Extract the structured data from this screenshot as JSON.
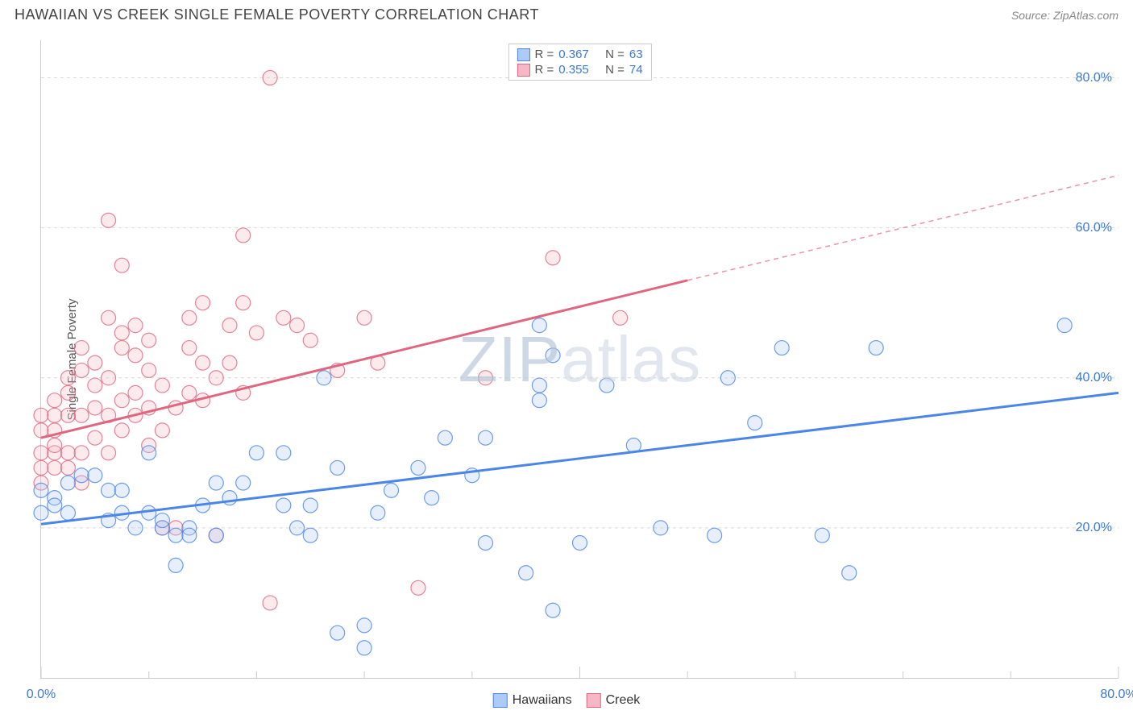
{
  "header": {
    "title": "HAWAIIAN VS CREEK SINGLE FEMALE POVERTY CORRELATION CHART",
    "source": "Source: ZipAtlas.com"
  },
  "watermark": {
    "zip": "ZIP",
    "atlas": "atlas"
  },
  "chart": {
    "type": "scatter-with-regression",
    "ylabel": "Single Female Poverty",
    "xlim": [
      0,
      80
    ],
    "ylim": [
      0,
      85
    ],
    "grid_color": "#d9d9d9",
    "grid_dash": "4 4",
    "axis_color": "#cccccc",
    "text_color": "#555555",
    "value_text_color": "#3b78d8",
    "y_ticks": [
      {
        "v": 20,
        "label": "20.0%"
      },
      {
        "v": 40,
        "label": "40.0%"
      },
      {
        "v": 60,
        "label": "60.0%"
      },
      {
        "v": 80,
        "label": "80.0%"
      }
    ],
    "x_ticks_major": [
      0,
      40,
      80
    ],
    "x_ticks_minor": [
      8,
      16,
      24,
      32,
      48,
      56,
      64,
      72
    ],
    "x_tick_left": {
      "v": 0,
      "label": "0.0%"
    },
    "x_tick_right": {
      "v": 80,
      "label": "80.0%"
    },
    "marker_radius": 9,
    "marker_stroke_width": 1.2,
    "marker_fill_opacity": 0.3,
    "regression_line_width": 3,
    "series": [
      {
        "name": "Hawaiians",
        "color": "#4a86e8",
        "fill": "#aecbf5",
        "stats": {
          "R_label": "R =",
          "R": "0.367",
          "N_label": "N =",
          "N": "63"
        },
        "regression": {
          "x1": 0,
          "y1": 20.5,
          "x2": 80,
          "y2": 38,
          "dashed_from": null
        },
        "points": [
          [
            0,
            22
          ],
          [
            0,
            25
          ],
          [
            1,
            24
          ],
          [
            1,
            23
          ],
          [
            2,
            26
          ],
          [
            2,
            22
          ],
          [
            3,
            27
          ],
          [
            4,
            27
          ],
          [
            5,
            25
          ],
          [
            5,
            21
          ],
          [
            6,
            22
          ],
          [
            6,
            25
          ],
          [
            7,
            20
          ],
          [
            8,
            30
          ],
          [
            8,
            22
          ],
          [
            9,
            20
          ],
          [
            9,
            21
          ],
          [
            10,
            19
          ],
          [
            10,
            15
          ],
          [
            11,
            20
          ],
          [
            11,
            19
          ],
          [
            12,
            23
          ],
          [
            13,
            26
          ],
          [
            13,
            19
          ],
          [
            14,
            24
          ],
          [
            15,
            26
          ],
          [
            16,
            30
          ],
          [
            18,
            30
          ],
          [
            18,
            23
          ],
          [
            19,
            20
          ],
          [
            20,
            23
          ],
          [
            20,
            19
          ],
          [
            21,
            40
          ],
          [
            22,
            28
          ],
          [
            22,
            6
          ],
          [
            24,
            7
          ],
          [
            24,
            4
          ],
          [
            25,
            22
          ],
          [
            26,
            25
          ],
          [
            28,
            28
          ],
          [
            29,
            24
          ],
          [
            30,
            32
          ],
          [
            32,
            27
          ],
          [
            33,
            32
          ],
          [
            33,
            18
          ],
          [
            36,
            14
          ],
          [
            37,
            47
          ],
          [
            37,
            37
          ],
          [
            37,
            39
          ],
          [
            38,
            43
          ],
          [
            38,
            9
          ],
          [
            40,
            18
          ],
          [
            42,
            39
          ],
          [
            44,
            31
          ],
          [
            46,
            20
          ],
          [
            50,
            19
          ],
          [
            51,
            40
          ],
          [
            53,
            34
          ],
          [
            55,
            44
          ],
          [
            58,
            19
          ],
          [
            60,
            14
          ],
          [
            62,
            44
          ],
          [
            76,
            47
          ]
        ]
      },
      {
        "name": "Creek",
        "color": "#e06680",
        "fill": "#f6b8c5",
        "stats": {
          "R_label": "R =",
          "R": "0.355",
          "N_label": "N =",
          "N": "74"
        },
        "regression": {
          "x1": 0,
          "y1": 32,
          "x2": 80,
          "y2": 67,
          "dashed_from": 48
        },
        "points": [
          [
            0,
            28
          ],
          [
            0,
            30
          ],
          [
            0,
            26
          ],
          [
            0,
            33
          ],
          [
            0,
            35
          ],
          [
            1,
            28
          ],
          [
            1,
            30
          ],
          [
            1,
            31
          ],
          [
            1,
            33
          ],
          [
            1,
            35
          ],
          [
            1,
            37
          ],
          [
            2,
            28
          ],
          [
            2,
            30
          ],
          [
            2,
            35
          ],
          [
            2,
            38
          ],
          [
            2,
            40
          ],
          [
            3,
            26
          ],
          [
            3,
            30
          ],
          [
            3,
            35
          ],
          [
            3,
            41
          ],
          [
            3,
            44
          ],
          [
            4,
            32
          ],
          [
            4,
            36
          ],
          [
            4,
            39
          ],
          [
            4,
            42
          ],
          [
            5,
            30
          ],
          [
            5,
            35
          ],
          [
            5,
            40
          ],
          [
            5,
            48
          ],
          [
            5,
            61
          ],
          [
            6,
            33
          ],
          [
            6,
            37
          ],
          [
            6,
            44
          ],
          [
            6,
            46
          ],
          [
            6,
            55
          ],
          [
            7,
            35
          ],
          [
            7,
            38
          ],
          [
            7,
            43
          ],
          [
            7,
            47
          ],
          [
            8,
            31
          ],
          [
            8,
            36
          ],
          [
            8,
            41
          ],
          [
            8,
            45
          ],
          [
            9,
            33
          ],
          [
            9,
            39
          ],
          [
            9,
            20
          ],
          [
            10,
            36
          ],
          [
            10,
            20
          ],
          [
            11,
            38
          ],
          [
            11,
            44
          ],
          [
            11,
            48
          ],
          [
            12,
            37
          ],
          [
            12,
            42
          ],
          [
            12,
            50
          ],
          [
            13,
            40
          ],
          [
            13,
            19
          ],
          [
            14,
            42
          ],
          [
            14,
            47
          ],
          [
            15,
            38
          ],
          [
            15,
            50
          ],
          [
            15,
            59
          ],
          [
            16,
            46
          ],
          [
            17,
            10
          ],
          [
            17,
            80
          ],
          [
            18,
            48
          ],
          [
            19,
            47
          ],
          [
            20,
            45
          ],
          [
            22,
            41
          ],
          [
            24,
            48
          ],
          [
            25,
            42
          ],
          [
            28,
            12
          ],
          [
            33,
            40
          ],
          [
            38,
            56
          ],
          [
            43,
            48
          ]
        ]
      }
    ],
    "series_legend_label_1": "Hawaiians",
    "series_legend_label_2": "Creek"
  }
}
